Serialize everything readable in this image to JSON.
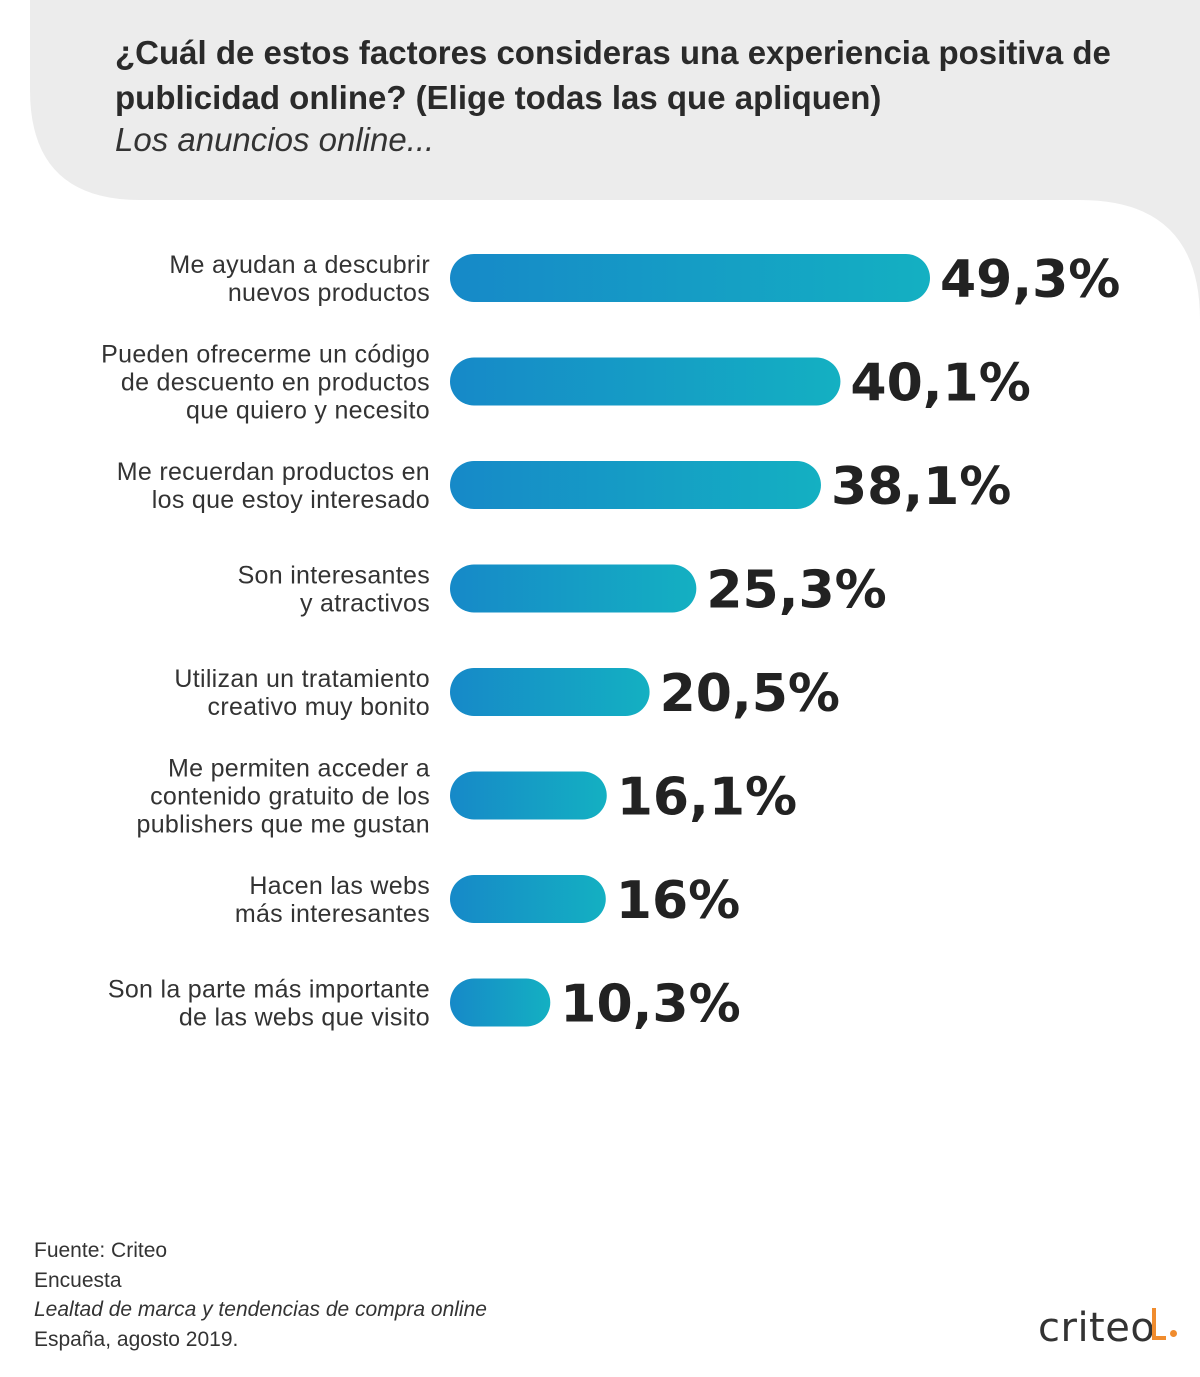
{
  "chart_data": {
    "type": "bar",
    "orientation": "horizontal",
    "title": "¿Cuál de estos factores consideras una experiencia positiva de publicidad online? (Elige todas las que apliquen)",
    "subtitle": "Los anuncios online...",
    "categories": [
      [
        "Me ayudan a descubrir",
        "nuevos productos"
      ],
      [
        "Pueden ofrecerme un código",
        "de descuento en productos",
        "que quiero y necesito"
      ],
      [
        "Me recuerdan productos en",
        "los que estoy interesado"
      ],
      [
        "Son interesantes",
        "y atractivos"
      ],
      [
        "Utilizan un tratamiento",
        "creativo muy bonito"
      ],
      [
        "Me permiten acceder a",
        "contenido gratuito de los",
        "publishers que me gustan"
      ],
      [
        "Hacen las webs",
        "más interesantes"
      ],
      [
        "Son la parte más importante",
        "de las webs que visito"
      ]
    ],
    "values": [
      49.3,
      40.1,
      38.1,
      25.3,
      20.5,
      16.1,
      16,
      10.3
    ],
    "value_labels": [
      "49,3%",
      "40,1%",
      "38,1%",
      "25,3%",
      "20,5%",
      "16,1%",
      "16%",
      "10,3%"
    ],
    "unit": "%",
    "colors": {
      "bar_start": "#1689c8",
      "bar_end": "#14b0c2"
    }
  },
  "footer": {
    "source": "Fuente: Criteo",
    "type": "Encuesta",
    "study": "Lealtad de marca y tendencias de compra online",
    "place_date": "España, agosto 2019."
  },
  "logo": {
    "text": "criteo",
    "accent_color": "#f08c2e"
  },
  "colors": {
    "background": "#ececec",
    "panel": "#ffffff"
  }
}
